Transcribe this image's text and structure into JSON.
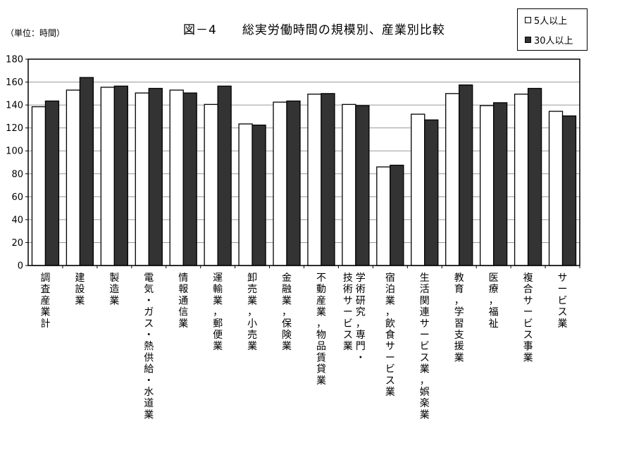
{
  "unit_note": "（単位：時間）",
  "chart_data": {
    "type": "bar",
    "title": "図－4　　総実労働時間の規模別、産業別比較",
    "xlabel": "",
    "ylabel": "",
    "ylim": [
      0,
      180
    ],
    "yticks": [
      0,
      20,
      40,
      60,
      80,
      100,
      120,
      140,
      160,
      180
    ],
    "grid": true,
    "legend_position": "top-right",
    "categories": [
      "調査産業計",
      "建設業",
      "製造業",
      "電気・ガス・熱供給・水道業",
      "情報通信業",
      "運輸業，郵便業",
      "卸売業，小売業",
      "金融業，保険業",
      "不動産業，物品賃貸業",
      "学術研究，専門・技術サービス業",
      "宿泊業，飲食サービス業",
      "生活関連サービス業，娯楽業",
      "教育，学習支援業",
      "医療，福祉",
      "複合サービス事業",
      "サービス業"
    ],
    "category_label_columns": [
      [
        "調査産業計"
      ],
      [
        "建設業"
      ],
      [
        "製造業"
      ],
      [
        "電気・ガス・熱供給・水道業"
      ],
      [
        "情報通信業"
      ],
      [
        "運輸業，郵便業"
      ],
      [
        "卸売業，小売業"
      ],
      [
        "金融業，保険業"
      ],
      [
        "不動産業，物品賃貸業"
      ],
      [
        "学術研究，専門・",
        "技術サービス業"
      ],
      [
        "宿泊業，飲食サービス業"
      ],
      [
        "生活関連サービス業，娯楽業"
      ],
      [
        "教育，学習支援業"
      ],
      [
        "医療，福祉"
      ],
      [
        "複合サービス事業"
      ],
      [
        "サービス業"
      ]
    ],
    "series": [
      {
        "name": "5人以上",
        "color": "#ffffff",
        "values": [
          138.5,
          153,
          155.5,
          150.5,
          153,
          140.5,
          123.5,
          142.5,
          149.5,
          140.5,
          86,
          132,
          150,
          139.5,
          149.5,
          134.5
        ]
      },
      {
        "name": "30人以上",
        "color": "#333333",
        "values": [
          143.5,
          164,
          156.5,
          154.5,
          150.5,
          156.5,
          122.5,
          143.5,
          150,
          139.5,
          87.5,
          127,
          157.5,
          142,
          154.5,
          130.5
        ]
      }
    ]
  }
}
